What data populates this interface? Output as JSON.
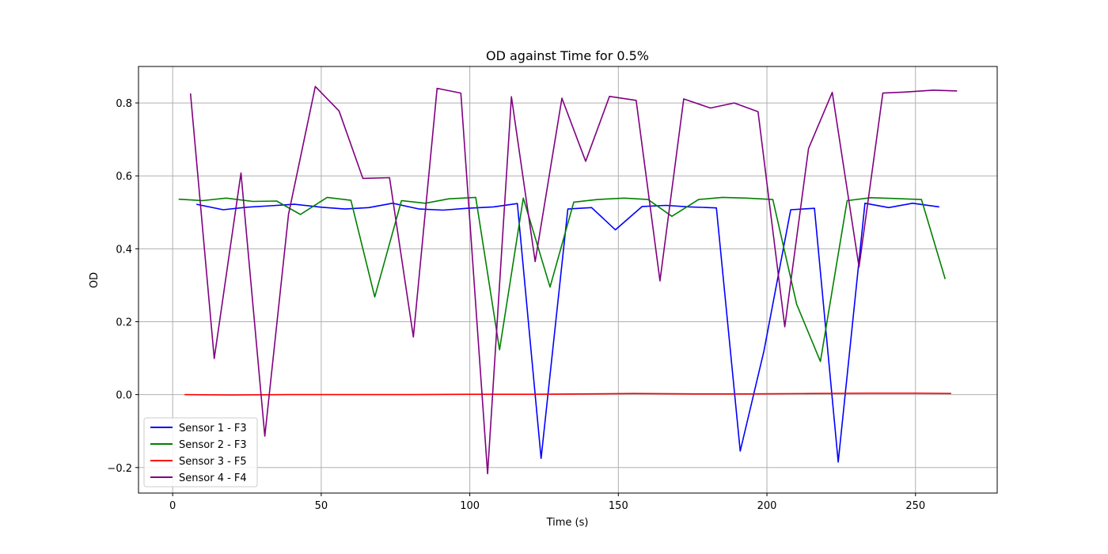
{
  "chart_data": {
    "type": "line",
    "title": "OD against Time for 0.5%",
    "xlabel": "Time (s)",
    "ylabel": "OD",
    "xlim": [
      -11.5,
      277.5
    ],
    "ylim": [
      -0.27,
      0.9
    ],
    "xticks": [
      0,
      50,
      100,
      150,
      200,
      250
    ],
    "xtick_labels": [
      "0",
      "50",
      "100",
      "150",
      "200",
      "250"
    ],
    "yticks": [
      -0.2,
      0.0,
      0.2,
      0.4,
      0.6,
      0.8
    ],
    "ytick_labels": [
      "−0.2",
      "0.0",
      "0.2",
      "0.4",
      "0.6",
      "0.8"
    ],
    "grid": true,
    "legend_position": "lower-left",
    "series": [
      {
        "name": "Sensor 1 - F3",
        "color": "#0000ff",
        "points": [
          [
            8,
            0.522
          ],
          [
            17,
            0.507
          ],
          [
            25,
            0.514
          ],
          [
            33,
            0.518
          ],
          [
            41,
            0.522
          ],
          [
            50,
            0.514
          ],
          [
            58,
            0.509
          ],
          [
            66,
            0.513
          ],
          [
            74,
            0.525
          ],
          [
            83,
            0.509
          ],
          [
            91,
            0.506
          ],
          [
            99,
            0.511
          ],
          [
            108,
            0.515
          ],
          [
            116,
            0.524
          ],
          [
            124,
            -0.175
          ],
          [
            133,
            0.509
          ],
          [
            141,
            0.513
          ],
          [
            149,
            0.452
          ],
          [
            158,
            0.516
          ],
          [
            166,
            0.519
          ],
          [
            174,
            0.515
          ],
          [
            183,
            0.512
          ],
          [
            191,
            -0.155
          ],
          [
            199,
            0.12
          ],
          [
            208,
            0.507
          ],
          [
            216,
            0.511
          ],
          [
            224,
            -0.185
          ],
          [
            233,
            0.525
          ],
          [
            241,
            0.513
          ],
          [
            249,
            0.525
          ],
          [
            258,
            0.515
          ]
        ]
      },
      {
        "name": "Sensor 2 - F3",
        "color": "#008000",
        "points": [
          [
            2,
            0.536
          ],
          [
            10,
            0.532
          ],
          [
            18,
            0.539
          ],
          [
            27,
            0.53
          ],
          [
            35,
            0.531
          ],
          [
            43,
            0.494
          ],
          [
            52,
            0.541
          ],
          [
            60,
            0.533
          ],
          [
            68,
            0.268
          ],
          [
            77,
            0.532
          ],
          [
            85,
            0.525
          ],
          [
            93,
            0.537
          ],
          [
            102,
            0.541
          ],
          [
            110,
            0.123
          ],
          [
            118,
            0.539
          ],
          [
            127,
            0.295
          ],
          [
            135,
            0.528
          ],
          [
            143,
            0.535
          ],
          [
            152,
            0.539
          ],
          [
            160,
            0.535
          ],
          [
            168,
            0.489
          ],
          [
            177,
            0.535
          ],
          [
            185,
            0.541
          ],
          [
            193,
            0.539
          ],
          [
            202,
            0.535
          ],
          [
            210,
            0.248
          ],
          [
            218,
            0.091
          ],
          [
            227,
            0.532
          ],
          [
            235,
            0.54
          ],
          [
            243,
            0.538
          ],
          [
            252,
            0.535
          ],
          [
            260,
            0.317
          ]
        ]
      },
      {
        "name": "Sensor 3 - F5",
        "color": "#ff0000",
        "points": [
          [
            4,
            0.0
          ],
          [
            20,
            -0.001
          ],
          [
            40,
            0.0
          ],
          [
            60,
            0.0
          ],
          [
            80,
            0.0
          ],
          [
            100,
            0.001
          ],
          [
            120,
            0.001
          ],
          [
            140,
            0.002
          ],
          [
            155,
            0.003
          ],
          [
            175,
            0.002
          ],
          [
            195,
            0.002
          ],
          [
            215,
            0.003
          ],
          [
            235,
            0.004
          ],
          [
            250,
            0.004
          ],
          [
            262,
            0.003
          ]
        ]
      },
      {
        "name": "Sensor 4 - F4",
        "color": "#800080",
        "points": [
          [
            6,
            0.826
          ],
          [
            14,
            0.099
          ],
          [
            23,
            0.608
          ],
          [
            31,
            -0.114
          ],
          [
            39,
            0.495
          ],
          [
            48,
            0.845
          ],
          [
            56,
            0.778
          ],
          [
            64,
            0.593
          ],
          [
            73,
            0.595
          ],
          [
            81,
            0.158
          ],
          [
            89,
            0.84
          ],
          [
            97,
            0.827
          ],
          [
            106,
            -0.217
          ],
          [
            114,
            0.817
          ],
          [
            122,
            0.365
          ],
          [
            131,
            0.813
          ],
          [
            139,
            0.64
          ],
          [
            147,
            0.818
          ],
          [
            156,
            0.807
          ],
          [
            164,
            0.312
          ],
          [
            172,
            0.811
          ],
          [
            181,
            0.786
          ],
          [
            189,
            0.8
          ],
          [
            197,
            0.776
          ],
          [
            206,
            0.186
          ],
          [
            214,
            0.675
          ],
          [
            222,
            0.829
          ],
          [
            231,
            0.35
          ],
          [
            239,
            0.827
          ],
          [
            247,
            0.83
          ],
          [
            256,
            0.835
          ],
          [
            264,
            0.833
          ]
        ]
      }
    ]
  }
}
